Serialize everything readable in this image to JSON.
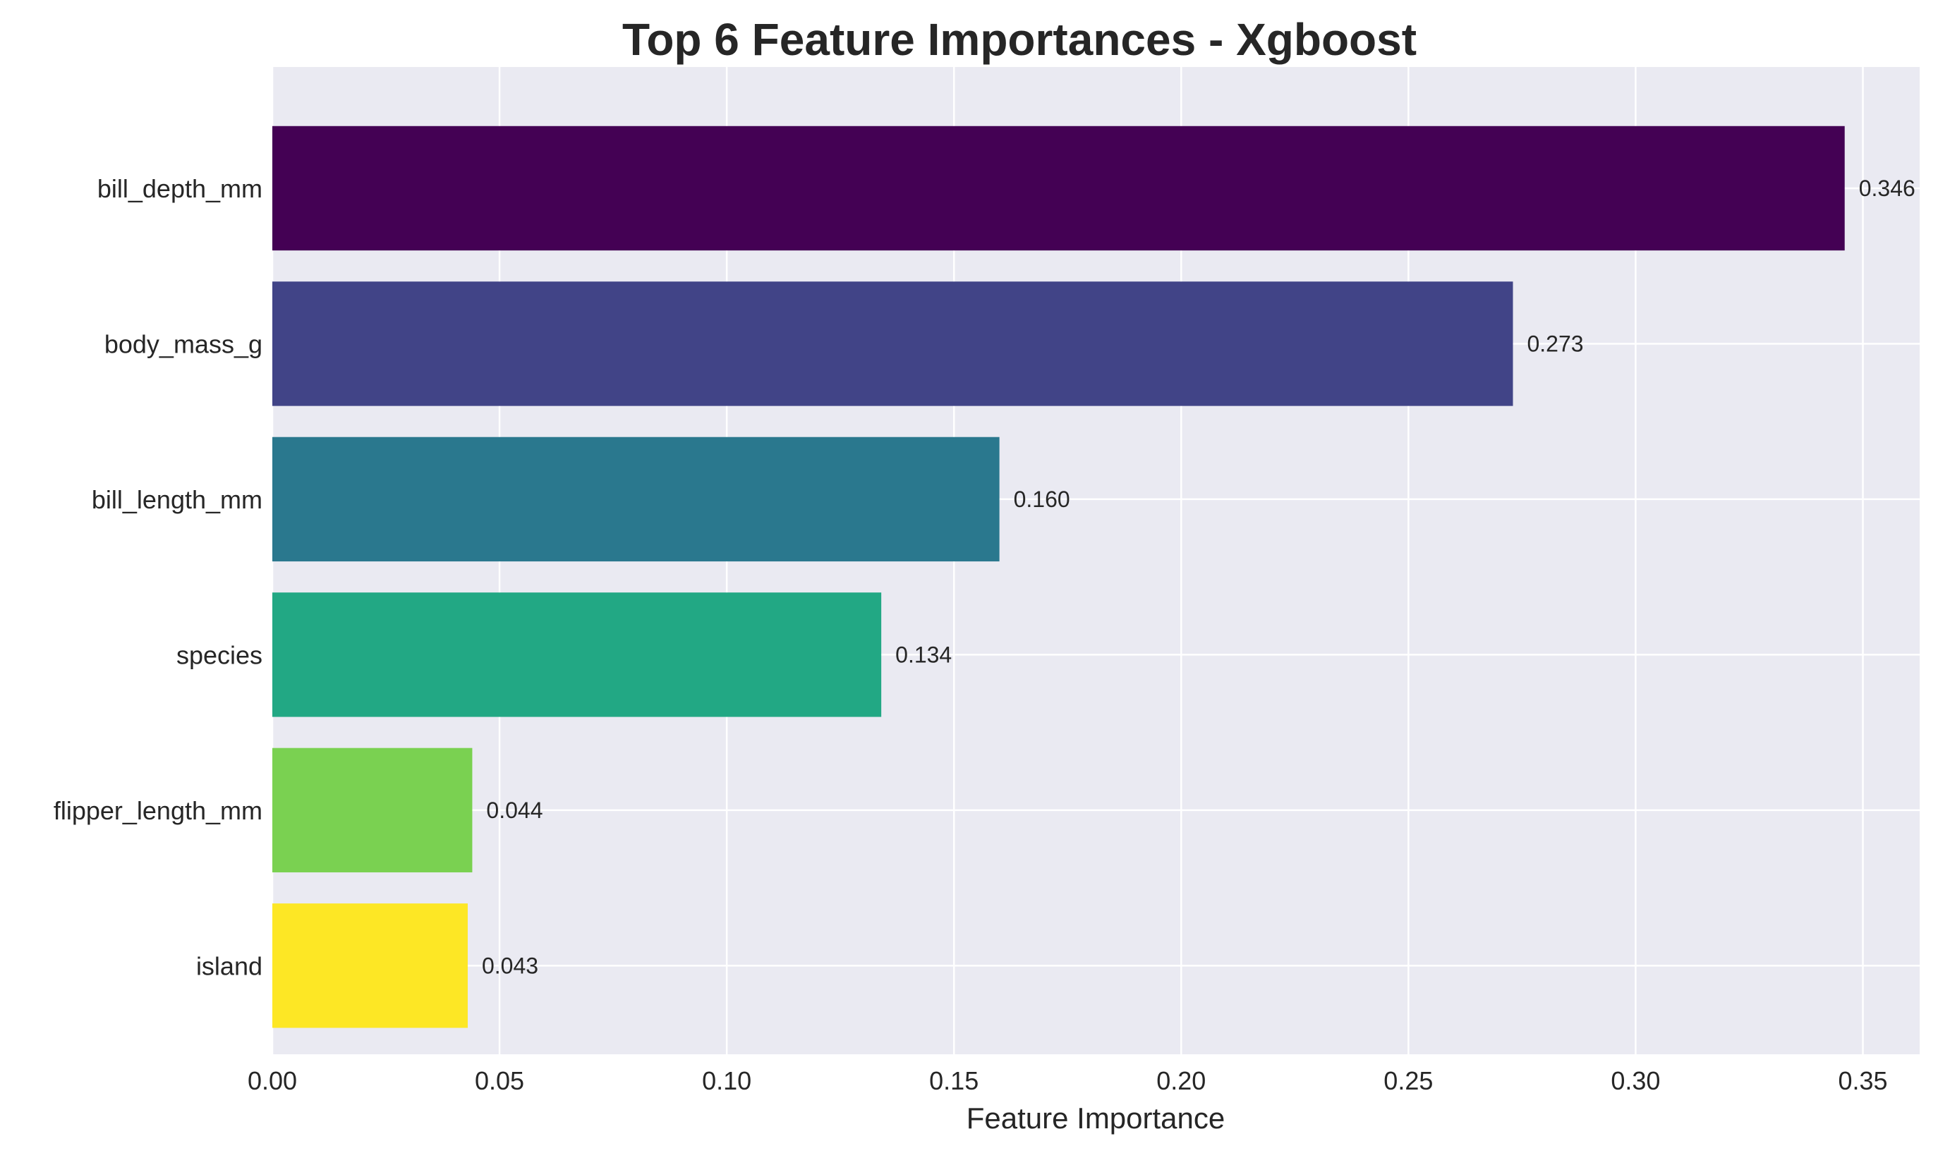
{
  "chart_data": {
    "type": "bar",
    "orientation": "horizontal",
    "title": "Top 6 Feature Importances - Xgboost",
    "xlabel": "Feature Importance",
    "ylabel": "",
    "xlim": [
      0,
      0.3625
    ],
    "xticks": [
      "0.00",
      "0.05",
      "0.10",
      "0.15",
      "0.20",
      "0.25",
      "0.30",
      "0.35"
    ],
    "grid": true,
    "categories": [
      "bill_depth_mm",
      "body_mass_g",
      "bill_length_mm",
      "species",
      "flipper_length_mm",
      "island"
    ],
    "values": [
      0.346,
      0.273,
      0.16,
      0.134,
      0.044,
      0.043
    ],
    "value_labels": [
      "0.346",
      "0.273",
      "0.160",
      "0.134",
      "0.044",
      "0.043"
    ],
    "colors": [
      "#440154",
      "#414487",
      "#2a788e",
      "#22a884",
      "#7ad151",
      "#fde725"
    ],
    "background_color": "#eaeaf2",
    "grid_color": "#ffffff"
  }
}
